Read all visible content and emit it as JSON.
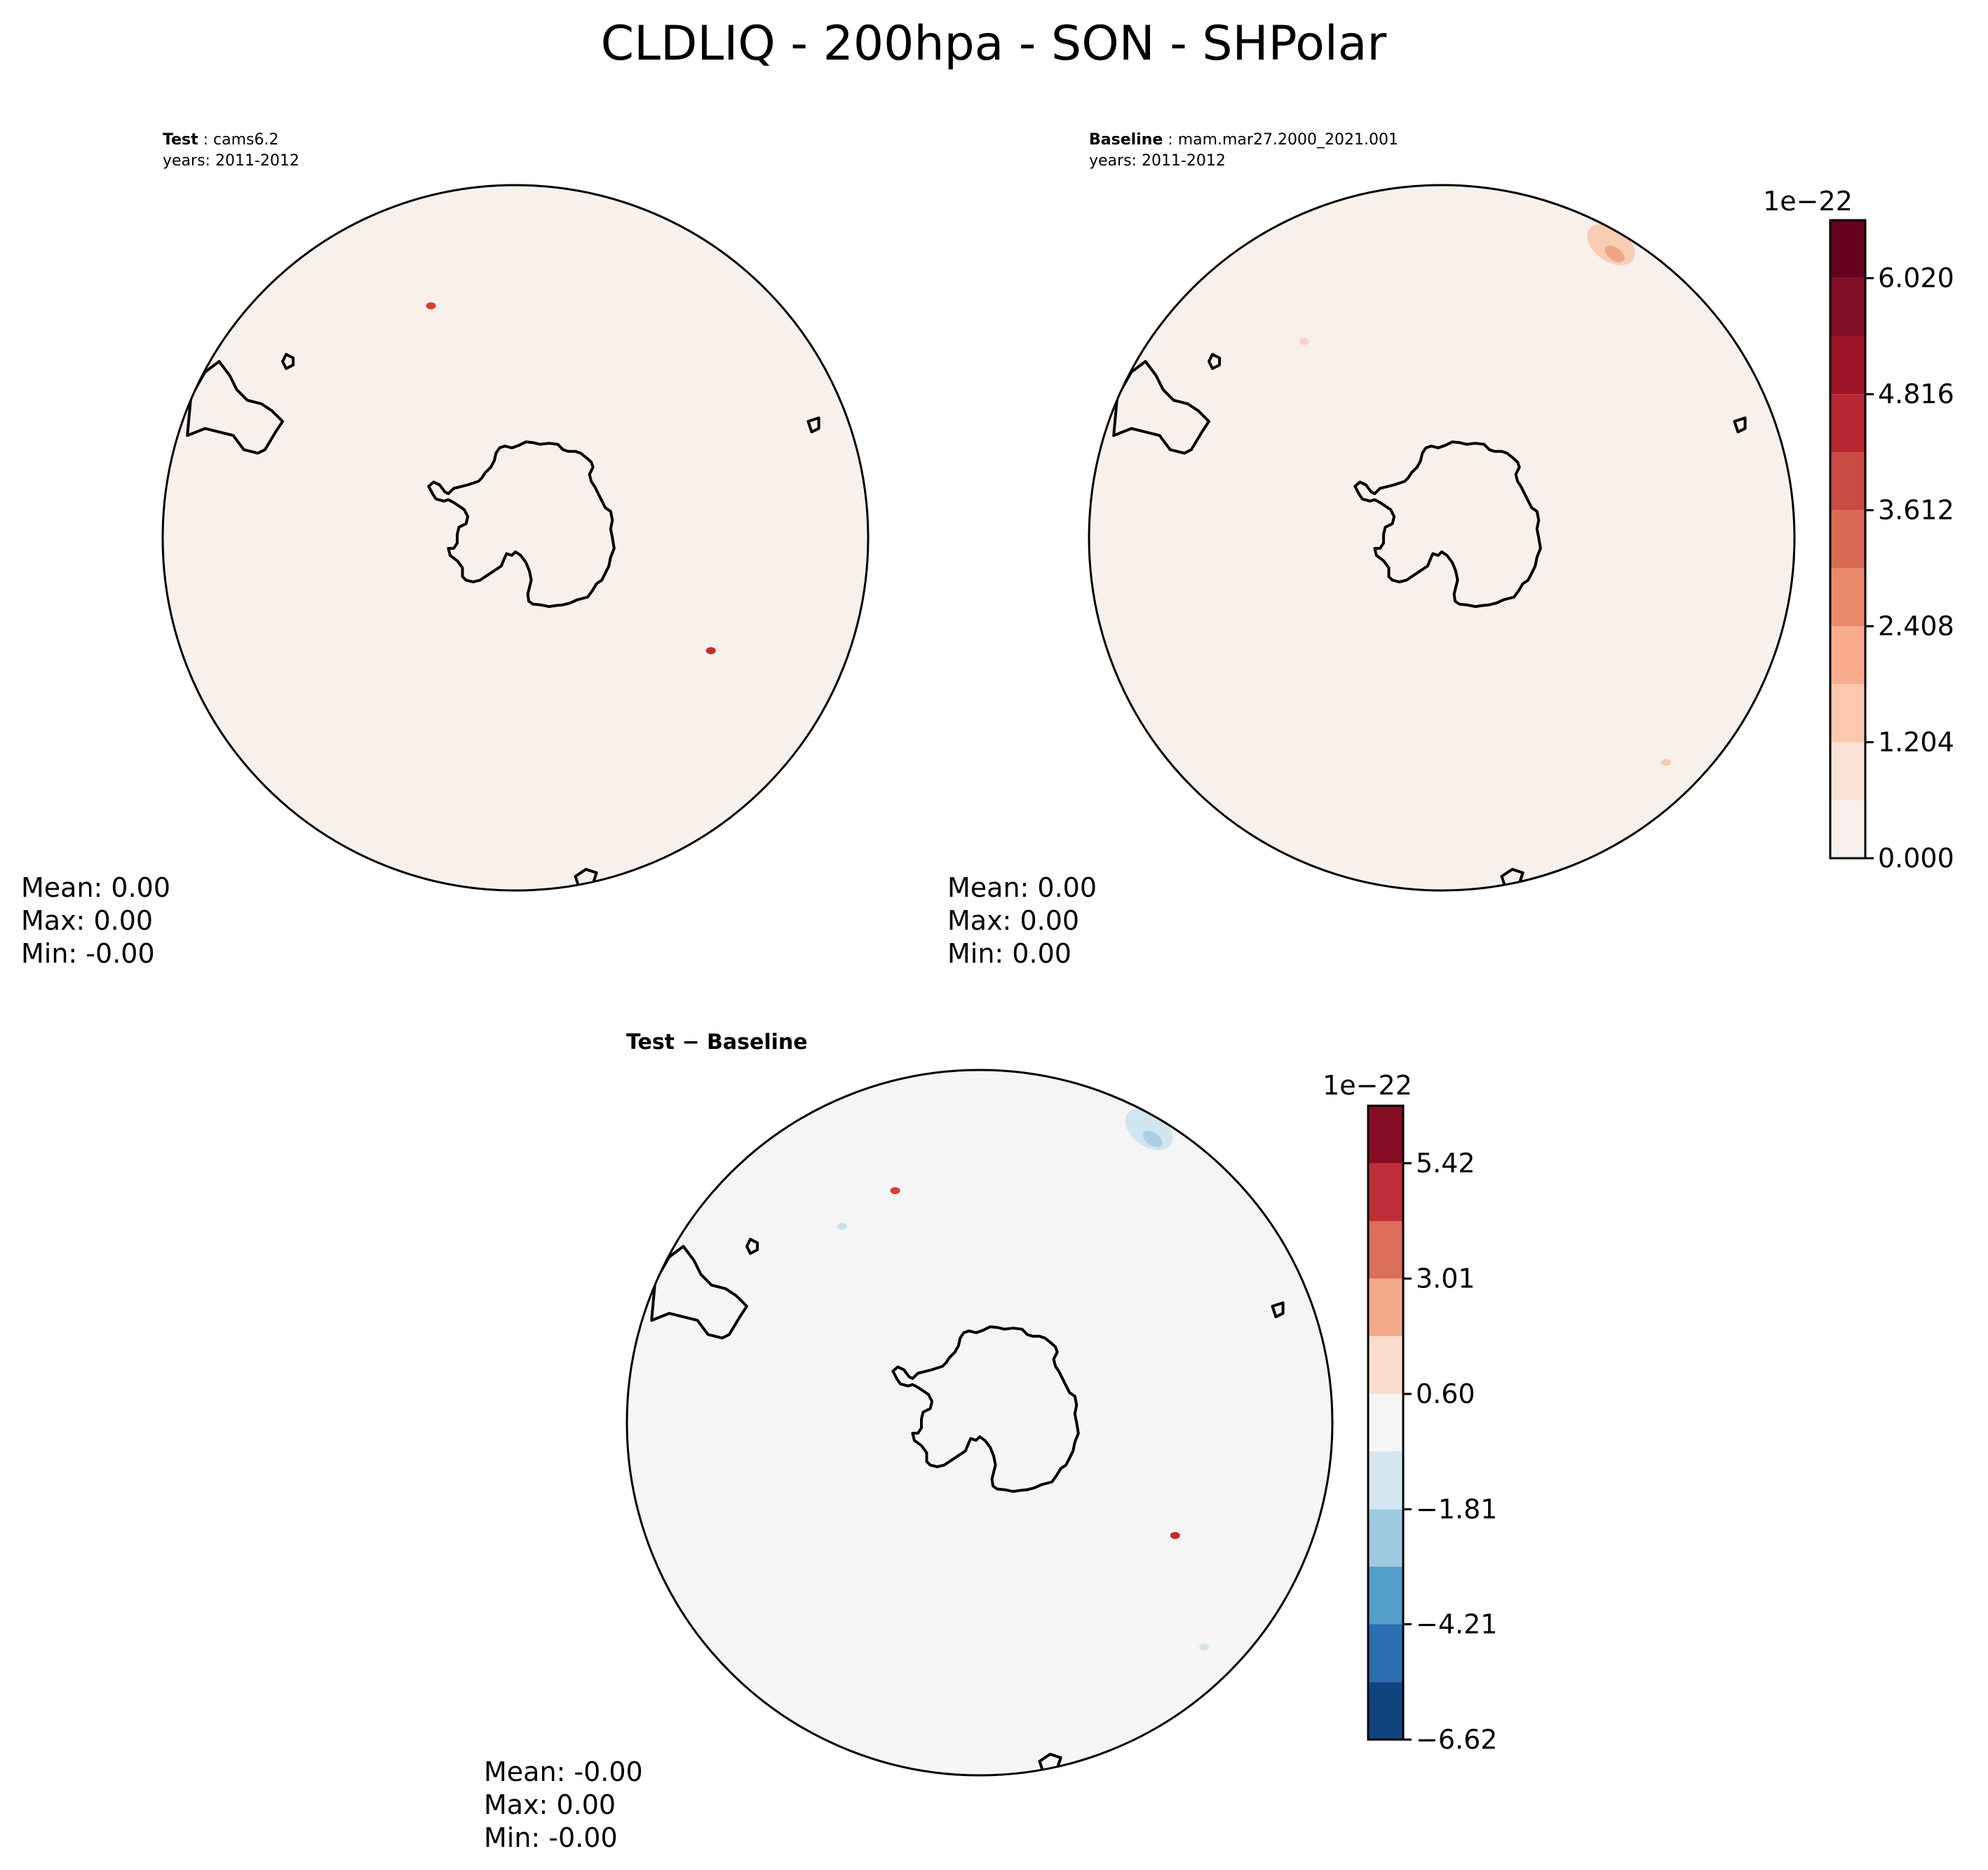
{
  "figure": {
    "title": "CLDLIQ - 200hpa - SON - SHPolar"
  },
  "panels": [
    {
      "id": "test",
      "label_bold": "Test",
      "label_rest": " : cams6.2",
      "years": "years: 2011-2012",
      "fill": "#f8f0eb",
      "stats": [
        "Mean:  0.00",
        "Max:  0.00",
        "Min: -0.00"
      ],
      "features": [
        {
          "kind": "speck",
          "color": "#c62a2a",
          "lon": 60,
          "lat": -58
        },
        {
          "kind": "speck",
          "color": "#d93d2d",
          "lon": -160,
          "lat": -55
        }
      ]
    },
    {
      "id": "baseline",
      "label_bold": "Baseline",
      "label_rest": " : mam.mar27.2000_2021.001",
      "years": "years: 2011-2012",
      "fill": "#f8f0eb",
      "stats": [
        "Mean:  0.00",
        "Max:  0.00",
        "Min:  0.00"
      ],
      "features": [
        {
          "kind": "speck",
          "color": "#fbd2bd",
          "lon": -145,
          "lat": -56
        },
        {
          "kind": "speck",
          "color": "#f7c8b0",
          "lon": 45,
          "lat": -45
        },
        {
          "kind": "blob",
          "color": "#f9ccb4",
          "inner": "#f0a486",
          "lon": 150,
          "lat": -42
        }
      ]
    },
    {
      "id": "diff",
      "label_bold": "Test − Baseline",
      "fill": "#f5f5f5",
      "stats": [
        "Mean: -0.00",
        "Max:  0.00",
        "Min: -0.00"
      ],
      "features": [
        {
          "kind": "speck",
          "color": "#c62a2a",
          "lon": 60,
          "lat": -58
        },
        {
          "kind": "speck",
          "color": "#d93d2d",
          "lon": -160,
          "lat": -55
        },
        {
          "kind": "speck",
          "color": "#c9e1ef",
          "lon": -145,
          "lat": -56
        },
        {
          "kind": "speck",
          "color": "#d1e5f0",
          "lon": 45,
          "lat": -45
        },
        {
          "kind": "blob",
          "color": "#d1e5f0",
          "inner": "#a9cfe5",
          "lon": 150,
          "lat": -42
        }
      ]
    }
  ],
  "colorbars": [
    {
      "id": "cbar-main",
      "exponent": "1e−22",
      "levels": [
        0.0,
        0.602,
        1.204,
        1.806,
        2.408,
        3.01,
        3.612,
        4.214,
        4.816,
        5.418,
        6.02,
        6.622
      ],
      "tick_labels": [
        "0.000",
        "1.204",
        "2.408",
        "3.612",
        "4.816",
        "6.020"
      ],
      "tick_values": [
        0.0,
        1.204,
        2.408,
        3.612,
        4.816,
        6.02
      ],
      "colors": [
        "#f7f0ec",
        "#fbe2d6",
        "#fcc9b0",
        "#f8ac8c",
        "#ec8a6d",
        "#da6954",
        "#c94b43",
        "#b82732",
        "#9e1528",
        "#800d23",
        "#67001f"
      ]
    },
    {
      "id": "cbar-diff",
      "exponent": "1e−22",
      "levels": [
        -6.62,
        -5.42,
        -4.21,
        -3.01,
        -1.81,
        -0.6,
        0.6,
        1.81,
        3.01,
        4.21,
        5.42,
        6.62
      ],
      "tick_labels": [
        "−6.62",
        "−4.21",
        "−1.81",
        "0.60",
        "3.01",
        "5.42"
      ],
      "tick_values": [
        -6.62,
        -4.21,
        -1.81,
        0.6,
        3.01,
        5.42
      ],
      "colors": [
        "#0f457d",
        "#2b6fb0",
        "#539dc9",
        "#9ecae1",
        "#d4e6f1",
        "#f5f5f5",
        "#fbdccd",
        "#f4a98a",
        "#db6d59",
        "#be2f3a",
        "#850c22"
      ]
    }
  ]
}
